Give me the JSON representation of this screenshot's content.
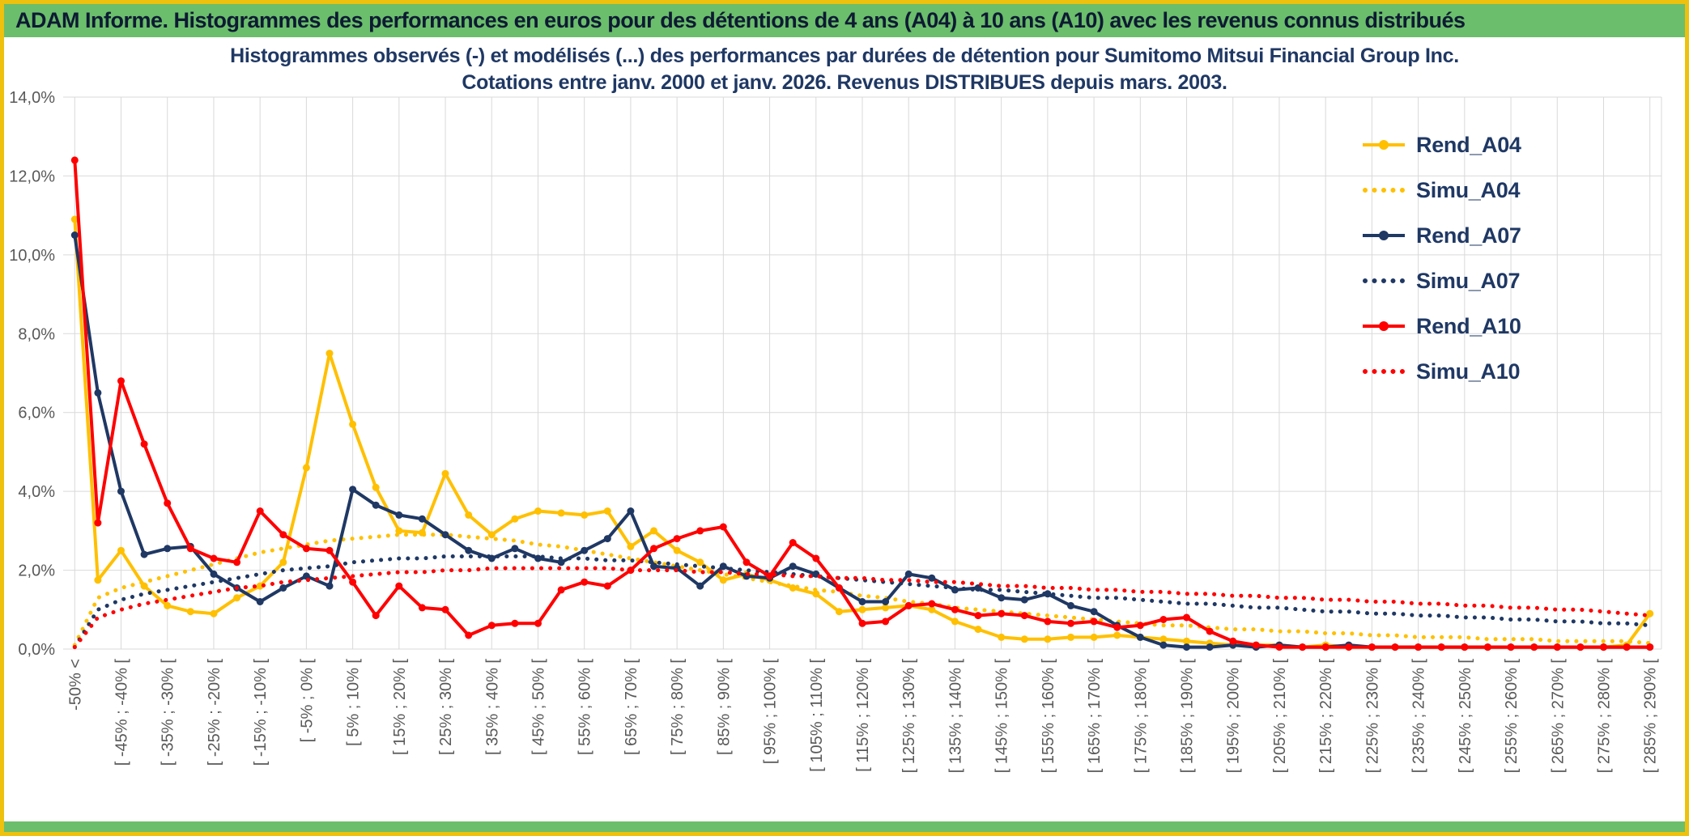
{
  "header": {
    "title": "ADAM Informe. Histogrammes des performances en euros pour des détentions de 4 ans (A04) à 10 ans (A10) avec les revenus connus distribués"
  },
  "colors": {
    "header_green": "#6BBE6B",
    "frame_gold": "#EDC10D",
    "grid": "#D9D9D9",
    "tick_text": "#595959",
    "title_text": "#1F3864"
  },
  "chart_data": {
    "type": "line",
    "title_line1": "Histogrammes observés (-) et modélisés (...) des performances par durées de détention pour Sumitomo Mitsui Financial Group Inc.",
    "title_line2": "Cotations entre janv. 2000 et janv. 2026. Revenus DISTRIBUES depuis mars. 2003.",
    "ylim": [
      0,
      14
    ],
    "ytick_step": 2,
    "ytick_labels": [
      "0,0%",
      "2,0%",
      "4,0%",
      "6,0%",
      "8,0%",
      "10,0%",
      "12,0%",
      "14,0%"
    ],
    "grid": true,
    "legend_position": "right-inside",
    "n_points": 69,
    "label_every": 2,
    "x_tick_labels": [
      "-50% <",
      "[ -45% ; -40% [",
      "[ -35% ; -30% [",
      "[ -25% ; -20% [",
      "[ -15% ; -10% [",
      "[ -5% ; 0% [",
      "[ 5% ; 10% [",
      "[ 15% ; 20% [",
      "[ 25% ; 30% [",
      "[ 35% ; 40% [",
      "[ 45% ; 50% [",
      "[ 55% ; 60% [",
      "[ 65% ; 70% [",
      "[ 75% ; 80% [",
      "[ 85% ; 90% [",
      "[ 95% ; 100% [",
      "[ 105% ; 110% [",
      "[ 115% ; 120% [",
      "[ 125% ; 130% [",
      "[ 135% ; 140% [",
      "[ 145% ; 150% [",
      "[ 155% ; 160% [",
      "[ 165% ; 170% [",
      "[ 175% ; 180% [",
      "[ 185% ; 190% [",
      "[ 195% ; 200% [",
      "[ 205% ; 210% [",
      "[ 215% ; 220% [",
      "[ 225% ; 230% [",
      "[ 235% ; 240% [",
      "[ 245% ; 250% [",
      "[ 255% ; 260% [",
      "[ 265% ; 270% [",
      "[ 275% ; 280% [",
      "[ 285% ; 290% ["
    ],
    "series": [
      {
        "name": "Rend_A04",
        "style": "solid",
        "marker": true,
        "color": "#FFC000",
        "values": [
          10.9,
          1.75,
          2.5,
          1.6,
          1.1,
          0.95,
          0.9,
          1.3,
          1.6,
          2.2,
          4.6,
          7.5,
          5.7,
          4.1,
          3.0,
          2.95,
          4.45,
          3.4,
          2.9,
          3.3,
          3.5,
          3.45,
          3.4,
          3.5,
          2.6,
          3.0,
          2.5,
          2.2,
          1.75,
          1.9,
          1.75,
          1.55,
          1.4,
          0.95,
          1.0,
          1.05,
          1.1,
          1.0,
          0.7,
          0.5,
          0.3,
          0.25,
          0.25,
          0.3,
          0.3,
          0.35,
          0.3,
          0.25,
          0.2,
          0.15,
          0.1,
          0.1,
          0.1,
          0.05,
          0.1,
          0.05,
          0.05,
          0.05,
          0.05,
          0.05,
          0.05,
          0.05,
          0.05,
          0.05,
          0.05,
          0.05,
          0.05,
          0.1,
          0.9
        ]
      },
      {
        "name": "Simu_A04",
        "style": "dotted",
        "marker": false,
        "color": "#FFC000",
        "values": [
          0.1,
          1.3,
          1.55,
          1.7,
          1.85,
          2.0,
          2.15,
          2.3,
          2.45,
          2.55,
          2.65,
          2.75,
          2.8,
          2.85,
          2.9,
          2.9,
          2.9,
          2.85,
          2.8,
          2.75,
          2.65,
          2.6,
          2.5,
          2.4,
          2.3,
          2.2,
          2.1,
          2.0,
          1.9,
          1.8,
          1.7,
          1.6,
          1.5,
          1.45,
          1.35,
          1.3,
          1.2,
          1.15,
          1.05,
          1.0,
          0.95,
          0.9,
          0.85,
          0.8,
          0.75,
          0.7,
          0.65,
          0.6,
          0.6,
          0.55,
          0.5,
          0.5,
          0.45,
          0.45,
          0.4,
          0.4,
          0.35,
          0.35,
          0.3,
          0.3,
          0.3,
          0.25,
          0.25,
          0.25,
          0.2,
          0.2,
          0.2,
          0.2,
          0.15
        ]
      },
      {
        "name": "Rend_A07",
        "style": "solid",
        "marker": true,
        "color": "#1F3864",
        "values": [
          10.5,
          6.5,
          4.0,
          2.4,
          2.55,
          2.6,
          1.9,
          1.55,
          1.2,
          1.55,
          1.85,
          1.6,
          4.05,
          3.65,
          3.4,
          3.3,
          2.9,
          2.5,
          2.3,
          2.55,
          2.3,
          2.2,
          2.5,
          2.8,
          3.5,
          2.1,
          2.05,
          1.6,
          2.1,
          1.85,
          1.8,
          2.1,
          1.9,
          1.55,
          1.2,
          1.2,
          1.9,
          1.8,
          1.5,
          1.55,
          1.3,
          1.25,
          1.4,
          1.1,
          0.95,
          0.6,
          0.3,
          0.1,
          0.05,
          0.05,
          0.1,
          0.05,
          0.1,
          0.05,
          0.05,
          0.1,
          0.05,
          0.05,
          0.05,
          0.05,
          0.05,
          0.05,
          0.05,
          0.05,
          0.05,
          0.05,
          0.05,
          0.05,
          0.05
        ]
      },
      {
        "name": "Simu_A07",
        "style": "dotted",
        "marker": false,
        "color": "#1F3864",
        "values": [
          0.05,
          1.0,
          1.25,
          1.4,
          1.5,
          1.6,
          1.7,
          1.8,
          1.9,
          2.0,
          2.05,
          2.1,
          2.2,
          2.25,
          2.3,
          2.3,
          2.35,
          2.35,
          2.35,
          2.35,
          2.35,
          2.3,
          2.3,
          2.25,
          2.25,
          2.2,
          2.15,
          2.1,
          2.05,
          2.0,
          1.95,
          1.9,
          1.85,
          1.8,
          1.75,
          1.7,
          1.65,
          1.6,
          1.55,
          1.5,
          1.5,
          1.45,
          1.4,
          1.35,
          1.3,
          1.3,
          1.25,
          1.2,
          1.15,
          1.15,
          1.1,
          1.05,
          1.05,
          1.0,
          0.95,
          0.95,
          0.9,
          0.9,
          0.85,
          0.85,
          0.8,
          0.8,
          0.75,
          0.75,
          0.7,
          0.7,
          0.65,
          0.65,
          0.6
        ]
      },
      {
        "name": "Rend_A10",
        "style": "solid",
        "marker": true,
        "color": "#FF0000",
        "values": [
          12.4,
          3.2,
          6.8,
          5.2,
          3.7,
          2.55,
          2.3,
          2.2,
          3.5,
          2.9,
          2.55,
          2.5,
          1.7,
          0.85,
          1.6,
          1.05,
          1.0,
          0.35,
          0.6,
          0.65,
          0.65,
          1.5,
          1.7,
          1.6,
          2.0,
          2.55,
          2.8,
          3.0,
          3.1,
          2.2,
          1.85,
          2.7,
          2.3,
          1.55,
          0.65,
          0.7,
          1.1,
          1.15,
          1.0,
          0.85,
          0.9,
          0.85,
          0.7,
          0.65,
          0.7,
          0.55,
          0.6,
          0.75,
          0.8,
          0.45,
          0.2,
          0.1,
          0.05,
          0.05,
          0.05,
          0.05,
          0.05,
          0.05,
          0.05,
          0.05,
          0.05,
          0.05,
          0.05,
          0.05,
          0.05,
          0.05,
          0.05,
          0.05,
          0.05
        ]
      },
      {
        "name": "Simu_A10",
        "style": "dotted",
        "marker": false,
        "color": "#FF0000",
        "values": [
          0.05,
          0.8,
          1.0,
          1.15,
          1.25,
          1.35,
          1.45,
          1.55,
          1.6,
          1.7,
          1.75,
          1.8,
          1.85,
          1.9,
          1.95,
          1.95,
          2.0,
          2.0,
          2.05,
          2.05,
          2.05,
          2.05,
          2.05,
          2.05,
          2.0,
          2.0,
          2.0,
          1.95,
          1.95,
          1.9,
          1.9,
          1.85,
          1.85,
          1.8,
          1.8,
          1.75,
          1.75,
          1.7,
          1.7,
          1.65,
          1.6,
          1.6,
          1.55,
          1.55,
          1.5,
          1.5,
          1.45,
          1.45,
          1.4,
          1.4,
          1.35,
          1.35,
          1.3,
          1.3,
          1.25,
          1.25,
          1.2,
          1.2,
          1.15,
          1.15,
          1.1,
          1.1,
          1.05,
          1.05,
          1.0,
          1.0,
          0.95,
          0.9,
          0.85
        ]
      }
    ]
  }
}
